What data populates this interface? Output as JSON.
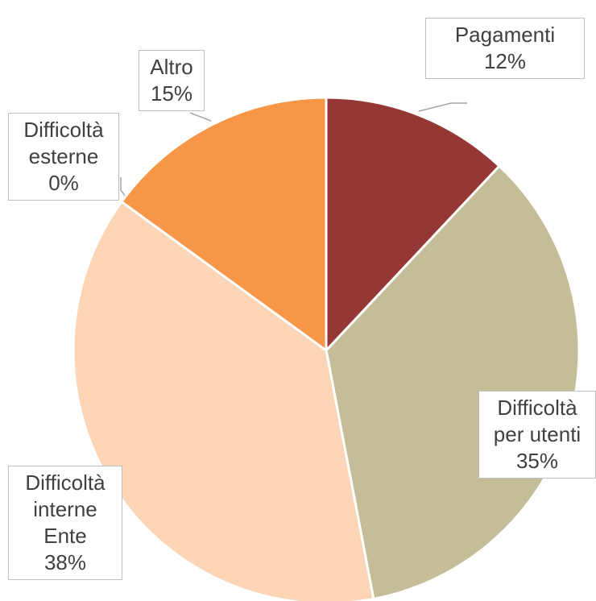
{
  "chart_data": {
    "type": "pie",
    "categories": [
      "Pagamenti",
      "Difficoltà per utenti",
      "Difficoltà interne Ente",
      "Difficoltà esterne",
      "Altro"
    ],
    "values": [
      12,
      35,
      38,
      0,
      15
    ],
    "value_labels": [
      "12%",
      "35%",
      "38%",
      "0%",
      "15%"
    ],
    "colors": [
      "#953735",
      "#c4bd97",
      "#fbd5b5",
      "#4f81bd",
      "#f79646"
    ]
  }
}
